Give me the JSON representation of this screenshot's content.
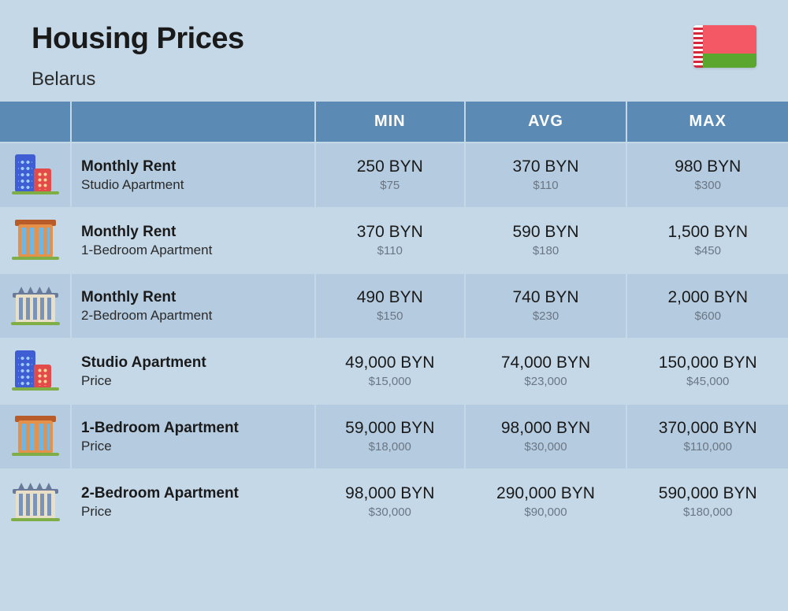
{
  "title": "Housing Prices",
  "country": "Belarus",
  "flag": {
    "top_color": "#f35864",
    "bottom_color": "#5aa62e",
    "ornament": "#d4283c"
  },
  "columns": {
    "min": "MIN",
    "avg": "AVG",
    "max": "MAX"
  },
  "table_colors": {
    "header_bg": "#5b8bb5",
    "header_fg": "#ffffff",
    "row_odd_bg": "#b5cce0",
    "row_even_bg": "#c5d8e8",
    "border": "#c5d8e8",
    "value_fg": "#1a1a1a",
    "sub_fg": "#6b7684"
  },
  "fonts": {
    "title_size": 38,
    "subtitle_size": 24,
    "header_size": 20,
    "label_title": 19,
    "label_sub": 17,
    "value_main": 21,
    "value_sub": 15
  },
  "rows": [
    {
      "icon": "studio",
      "title": "Monthly Rent",
      "sub": "Studio Apartment",
      "min": {
        "v": "250 BYN",
        "u": "$75"
      },
      "avg": {
        "v": "370 BYN",
        "u": "$110"
      },
      "max": {
        "v": "980 BYN",
        "u": "$300"
      }
    },
    {
      "icon": "1br",
      "title": "Monthly Rent",
      "sub": "1-Bedroom Apartment",
      "min": {
        "v": "370 BYN",
        "u": "$110"
      },
      "avg": {
        "v": "590 BYN",
        "u": "$180"
      },
      "max": {
        "v": "1,500 BYN",
        "u": "$450"
      }
    },
    {
      "icon": "2br",
      "title": "Monthly Rent",
      "sub": "2-Bedroom Apartment",
      "min": {
        "v": "490 BYN",
        "u": "$150"
      },
      "avg": {
        "v": "740 BYN",
        "u": "$230"
      },
      "max": {
        "v": "2,000 BYN",
        "u": "$600"
      }
    },
    {
      "icon": "studio",
      "title": "Studio Apartment",
      "sub": "Price",
      "min": {
        "v": "49,000 BYN",
        "u": "$15,000"
      },
      "avg": {
        "v": "74,000 BYN",
        "u": "$23,000"
      },
      "max": {
        "v": "150,000 BYN",
        "u": "$45,000"
      }
    },
    {
      "icon": "1br",
      "title": "1-Bedroom Apartment",
      "sub": "Price",
      "min": {
        "v": "59,000 BYN",
        "u": "$18,000"
      },
      "avg": {
        "v": "98,000 BYN",
        "u": "$30,000"
      },
      "max": {
        "v": "370,000 BYN",
        "u": "$110,000"
      }
    },
    {
      "icon": "2br",
      "title": "2-Bedroom Apartment",
      "sub": "Price",
      "min": {
        "v": "98,000 BYN",
        "u": "$30,000"
      },
      "avg": {
        "v": "290,000 BYN",
        "u": "$90,000"
      },
      "max": {
        "v": "590,000 BYN",
        "u": "$180,000"
      }
    }
  ]
}
